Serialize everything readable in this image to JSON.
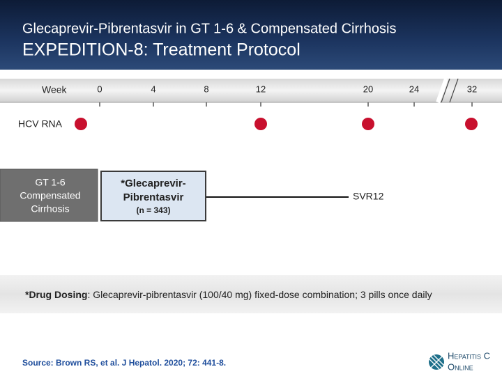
{
  "header": {
    "subtitle": "Glecaprevir-Pibrentasvir in GT 1-6 & Compensated Cirrhosis",
    "title": "EXPEDITION-8: Treatment Protocol"
  },
  "timeline": {
    "label": "Week",
    "weeks": [
      "0",
      "4",
      "8",
      "12",
      "20",
      "24",
      "32"
    ]
  },
  "hcv_rna": {
    "label": "HCV RNA"
  },
  "population": {
    "lines": [
      "GT 1-6",
      "Compensated",
      "Cirrhosis"
    ]
  },
  "treatment": {
    "lines": [
      "*Glecaprevir-",
      "Pibrentasvir"
    ],
    "n": "(n = 343)"
  },
  "endpoint": {
    "label": "SVR12"
  },
  "dosing": {
    "label": "*Drug Dosing",
    "text": ": Glecaprevir-pibrentasvir (100/40 mg) fixed-dose combination; 3 pills once daily"
  },
  "source": {
    "text": "Source: Brown RS, et al. J Hepatol. 2020; 72: 441-8."
  },
  "logo": {
    "line1": "Hepatitis C",
    "line2": "Online"
  }
}
